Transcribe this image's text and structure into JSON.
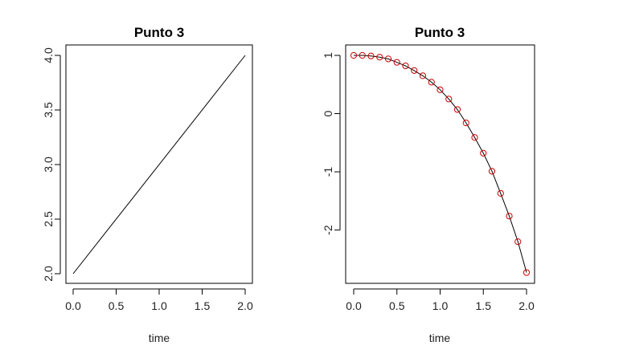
{
  "chart_data": [
    {
      "type": "line",
      "title": "Punto 3",
      "xlabel": "time",
      "ylabel": "",
      "xlim": [
        0,
        2
      ],
      "ylim": [
        2,
        4
      ],
      "xticks": [
        "0.0",
        "0.5",
        "1.0",
        "1.5",
        "2.0"
      ],
      "yticks": [
        "2.0",
        "2.5",
        "3.0",
        "3.5",
        "4.0"
      ],
      "grid": false,
      "series": [
        {
          "color": "#000000",
          "x": [
            0,
            2
          ],
          "values": [
            2,
            4
          ]
        }
      ]
    },
    {
      "type": "line",
      "title": "Punto 3",
      "xlabel": "time",
      "ylabel": "",
      "xlim": [
        0,
        2
      ],
      "ylim": [
        -2.75,
        1
      ],
      "xticks": [
        "0.0",
        "0.5",
        "1.0",
        "1.5",
        "2.0"
      ],
      "yticks": [
        "-2",
        "-1",
        "0",
        "1"
      ],
      "grid": false,
      "series": [
        {
          "color": "#000000",
          "style": "line",
          "x": [
            0,
            0.1,
            0.2,
            0.3,
            0.4,
            0.5,
            0.6,
            0.7,
            0.8,
            0.9,
            1.0,
            1.1,
            1.2,
            1.3,
            1.4,
            1.5,
            1.6,
            1.7,
            1.8,
            1.9,
            2.0
          ],
          "values": [
            1.0,
            1.0,
            0.99,
            0.97,
            0.94,
            0.88,
            0.82,
            0.74,
            0.65,
            0.54,
            0.41,
            0.25,
            0.07,
            -0.16,
            -0.41,
            -0.68,
            -0.99,
            -1.37,
            -1.76,
            -2.2,
            -2.73
          ]
        },
        {
          "color": "#cc0000",
          "style": "points",
          "x": [
            0,
            0.1,
            0.2,
            0.3,
            0.4,
            0.5,
            0.6,
            0.7,
            0.8,
            0.9,
            1.0,
            1.1,
            1.2,
            1.3,
            1.4,
            1.5,
            1.6,
            1.7,
            1.8,
            1.9,
            2.0
          ],
          "values": [
            1.0,
            1.0,
            0.99,
            0.97,
            0.94,
            0.88,
            0.82,
            0.74,
            0.65,
            0.54,
            0.41,
            0.25,
            0.07,
            -0.16,
            -0.41,
            -0.68,
            -0.99,
            -1.37,
            -1.76,
            -2.2,
            -2.73
          ]
        }
      ]
    }
  ]
}
